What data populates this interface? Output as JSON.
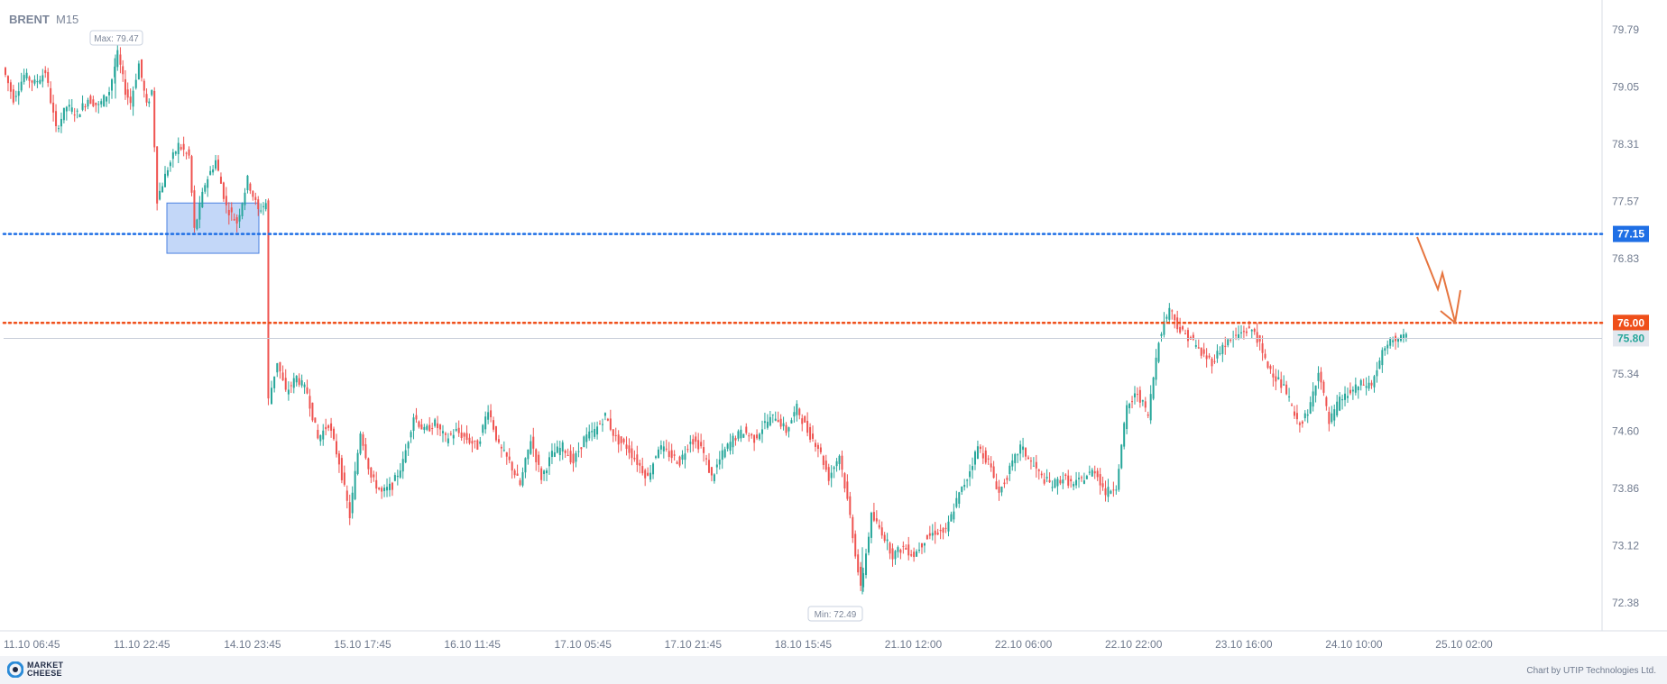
{
  "header": {
    "symbol": "BRENT",
    "timeframe": "M15"
  },
  "markers": {
    "max_label": "Max: 79.47",
    "min_label": "Min: 72.49"
  },
  "levels": {
    "blue_line": {
      "value": 77.15,
      "label": "77.15",
      "color": "#1f6fe5"
    },
    "red_line": {
      "value": 76.0,
      "label": "76.00",
      "color": "#ef4f1a"
    },
    "current": {
      "value": 75.8,
      "label": "75.80",
      "color": "#26a69a"
    }
  },
  "colors": {
    "bull": "#26a69a",
    "bear": "#ef5350",
    "zone_fill": "#a9c6f5",
    "zone_stroke": "#4a82e0",
    "arrow": "#e6753f"
  },
  "footer": {
    "logo_line1": "MARKET",
    "logo_line2": "CHEESE",
    "credit": "Chart by UTIP Technologies Ltd."
  },
  "chart_data": {
    "type": "candlestick",
    "title": "BRENT M15",
    "y_ticks": [
      79.79,
      79.05,
      78.31,
      77.57,
      76.83,
      75.34,
      74.6,
      73.86,
      73.12,
      72.38
    ],
    "ylim": [
      72.0,
      80.05
    ],
    "x_ticks": [
      "11.10 06:45",
      "11.10 22:45",
      "14.10 23:45",
      "15.10 17:45",
      "16.10 11:45",
      "17.10 05:45",
      "17.10 21:45",
      "18.10 15:45",
      "21.10 12:00",
      "22.10 06:00",
      "22.10 22:00",
      "23.10 16:00",
      "24.10 10:00",
      "25.10 02:00"
    ],
    "max": 79.47,
    "min": 72.49,
    "support_zone": {
      "from": 76.9,
      "to": 77.55
    },
    "price_path": [
      [
        0,
        79.3
      ],
      [
        10,
        78.9
      ],
      [
        20,
        79.2
      ],
      [
        30,
        79.1
      ],
      [
        40,
        79.25
      ],
      [
        50,
        78.5
      ],
      [
        60,
        78.8
      ],
      [
        70,
        78.7
      ],
      [
        80,
        78.9
      ],
      [
        90,
        78.8
      ],
      [
        100,
        79.0
      ],
      [
        108,
        79.47
      ],
      [
        115,
        79.0
      ],
      [
        120,
        78.85
      ],
      [
        128,
        79.35
      ],
      [
        135,
        78.8
      ],
      [
        140,
        79.0
      ],
      [
        145,
        77.6
      ],
      [
        155,
        78.0
      ],
      [
        165,
        78.3
      ],
      [
        175,
        78.15
      ],
      [
        180,
        77.2
      ],
      [
        190,
        77.8
      ],
      [
        200,
        78.1
      ],
      [
        210,
        77.5
      ],
      [
        220,
        77.3
      ],
      [
        230,
        77.85
      ],
      [
        240,
        77.45
      ],
      [
        247,
        77.55
      ],
      [
        250,
        75.0
      ],
      [
        258,
        75.5
      ],
      [
        266,
        75.1
      ],
      [
        276,
        75.3
      ],
      [
        286,
        75.1
      ],
      [
        296,
        74.5
      ],
      [
        306,
        74.7
      ],
      [
        316,
        74.2
      ],
      [
        326,
        73.5
      ],
      [
        336,
        74.6
      ],
      [
        346,
        74.0
      ],
      [
        356,
        73.8
      ],
      [
        366,
        73.9
      ],
      [
        376,
        74.2
      ],
      [
        386,
        74.8
      ],
      [
        396,
        74.6
      ],
      [
        406,
        74.7
      ],
      [
        416,
        74.5
      ],
      [
        426,
        74.6
      ],
      [
        436,
        74.5
      ],
      [
        446,
        74.4
      ],
      [
        456,
        74.9
      ],
      [
        466,
        74.4
      ],
      [
        476,
        74.2
      ],
      [
        486,
        73.9
      ],
      [
        496,
        74.5
      ],
      [
        506,
        74.0
      ],
      [
        516,
        74.3
      ],
      [
        526,
        74.4
      ],
      [
        536,
        74.2
      ],
      [
        546,
        74.5
      ],
      [
        556,
        74.6
      ],
      [
        566,
        74.8
      ],
      [
        576,
        74.5
      ],
      [
        586,
        74.4
      ],
      [
        596,
        74.2
      ],
      [
        606,
        74.0
      ],
      [
        616,
        74.4
      ],
      [
        626,
        74.3
      ],
      [
        636,
        74.2
      ],
      [
        646,
        74.5
      ],
      [
        656,
        74.4
      ],
      [
        666,
        74.0
      ],
      [
        676,
        74.3
      ],
      [
        686,
        74.5
      ],
      [
        696,
        74.6
      ],
      [
        706,
        74.5
      ],
      [
        716,
        74.7
      ],
      [
        726,
        74.8
      ],
      [
        736,
        74.6
      ],
      [
        746,
        74.9
      ],
      [
        756,
        74.6
      ],
      [
        766,
        74.4
      ],
      [
        776,
        74.0
      ],
      [
        786,
        74.3
      ],
      [
        796,
        73.5
      ],
      [
        806,
        72.55
      ],
      [
        816,
        73.5
      ],
      [
        826,
        73.3
      ],
      [
        836,
        73.0
      ],
      [
        846,
        73.1
      ],
      [
        856,
        73.0
      ],
      [
        866,
        73.2
      ],
      [
        876,
        73.3
      ],
      [
        886,
        73.3
      ],
      [
        896,
        73.7
      ],
      [
        906,
        74.0
      ],
      [
        916,
        74.4
      ],
      [
        926,
        74.2
      ],
      [
        936,
        73.8
      ],
      [
        946,
        74.1
      ],
      [
        956,
        74.4
      ],
      [
        966,
        74.2
      ],
      [
        976,
        74.0
      ],
      [
        986,
        73.9
      ],
      [
        996,
        74.0
      ],
      [
        1006,
        73.9
      ],
      [
        1016,
        74.0
      ],
      [
        1026,
        74.1
      ],
      [
        1036,
        73.8
      ],
      [
        1046,
        73.9
      ],
      [
        1056,
        74.9
      ],
      [
        1066,
        75.1
      ],
      [
        1076,
        74.8
      ],
      [
        1086,
        75.8
      ],
      [
        1096,
        76.2
      ],
      [
        1106,
        75.9
      ],
      [
        1116,
        75.8
      ],
      [
        1126,
        75.6
      ],
      [
        1136,
        75.5
      ],
      [
        1146,
        75.7
      ],
      [
        1156,
        75.8
      ],
      [
        1166,
        75.9
      ],
      [
        1176,
        75.9
      ],
      [
        1186,
        75.5
      ],
      [
        1196,
        75.3
      ],
      [
        1206,
        75.1
      ],
      [
        1216,
        74.7
      ],
      [
        1226,
        74.8
      ],
      [
        1236,
        75.4
      ],
      [
        1246,
        74.7
      ],
      [
        1256,
        75.0
      ],
      [
        1266,
        75.1
      ],
      [
        1276,
        75.2
      ],
      [
        1286,
        75.2
      ],
      [
        1296,
        75.6
      ],
      [
        1306,
        75.8
      ],
      [
        1316,
        75.8
      ],
      [
        1322,
        75.8
      ]
    ]
  }
}
